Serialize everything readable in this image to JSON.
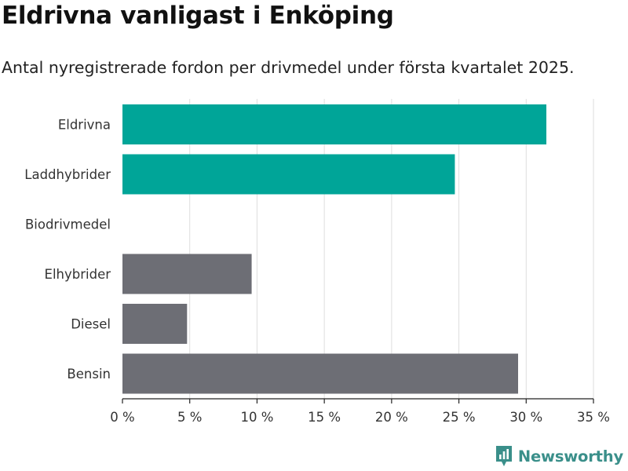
{
  "title": "Eldrivna vanligast i Enköping",
  "subtitle": "Antal nyregistrerade fordon per drivmedel under första kvartalet 2025.",
  "brand": {
    "name": "Newsworthy",
    "icon": "newsworthy-logo-icon",
    "color": "#3a8f8a"
  },
  "chart_data": {
    "type": "bar",
    "orientation": "horizontal",
    "categories": [
      "Eldrivna",
      "Laddhybrider",
      "Biodrivmedel",
      "Elhybrider",
      "Diesel",
      "Bensin"
    ],
    "values": [
      31.5,
      24.7,
      0,
      9.6,
      4.8,
      29.4
    ],
    "colors": [
      "#00a598",
      "#00a598",
      "#6d6e75",
      "#6d6e75",
      "#6d6e75",
      "#6d6e75"
    ],
    "xlim": [
      0,
      35
    ],
    "xticks": [
      0,
      5,
      10,
      15,
      20,
      25,
      30,
      35
    ],
    "xtick_labels": [
      "0 %",
      "5 %",
      "10 %",
      "15 %",
      "20 %",
      "25 %",
      "30 %",
      "35 %"
    ],
    "grid": "vertical"
  }
}
